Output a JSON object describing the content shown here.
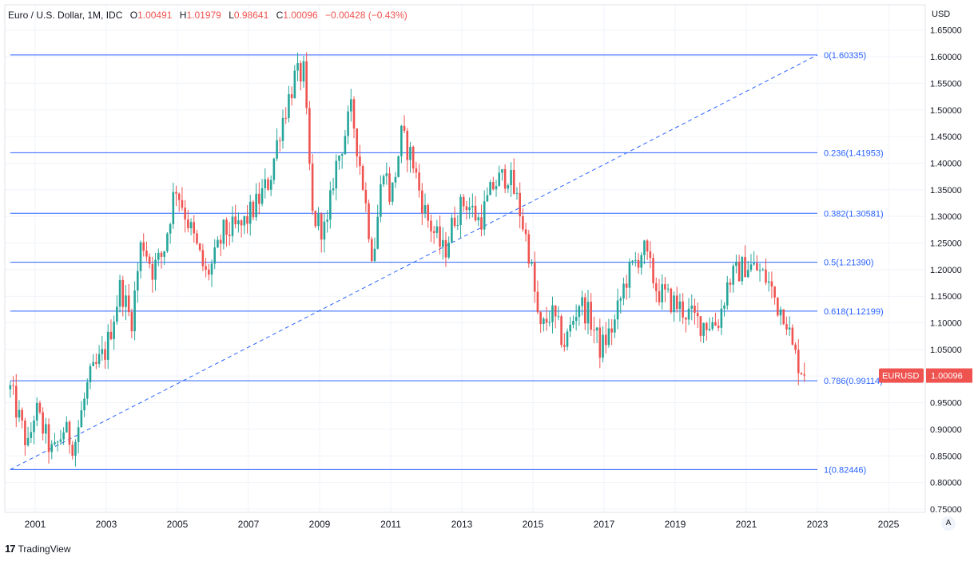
{
  "legend": {
    "symbol": "Euro / U.S. Dollar, 1M, IDC",
    "o_label": "O",
    "o_value": "1.00491",
    "h_label": "H",
    "h_value": "1.01979",
    "l_label": "L",
    "l_value": "0.98641",
    "c_label": "C",
    "c_value": "1.00096",
    "change": "−0.00428 (−0.43%)"
  },
  "axis_unit": "USD",
  "auto_label": "A",
  "brand": {
    "mark": "17",
    "name": "TradingView"
  },
  "price_badge": {
    "symbol": "EURUSD",
    "value": "1.00096"
  },
  "colors": {
    "up": "#26a69a",
    "down": "#ef5350",
    "fib": "#2962ff",
    "grid": "#f0f3fa",
    "badge": "#ef5350"
  },
  "chart_data": {
    "type": "candlestick",
    "interval": "1M",
    "x_range": [
      2000.2,
      2026.0
    ],
    "ylim": [
      0.75,
      1.65
    ],
    "y_ticks": [
      "0.75000",
      "0.80000",
      "0.85000",
      "0.90000",
      "0.95000",
      "1.00000",
      "1.05000",
      "1.10000",
      "1.15000",
      "1.20000",
      "1.25000",
      "1.30000",
      "1.35000",
      "1.40000",
      "1.45000",
      "1.50000",
      "1.55000",
      "1.60000",
      "1.65000"
    ],
    "x_ticks": [
      "2001",
      "2003",
      "2005",
      "2007",
      "2009",
      "2011",
      "2013",
      "2015",
      "2017",
      "2019",
      "2021",
      "2023",
      "2025"
    ],
    "grid": true,
    "price_anchors": [
      [
        2000.3,
        0.975
      ],
      [
        2000.8,
        0.865
      ],
      [
        2001.0,
        0.94
      ],
      [
        2001.5,
        0.85
      ],
      [
        2001.8,
        0.9
      ],
      [
        2002.1,
        0.87
      ],
      [
        2002.5,
        0.99
      ],
      [
        2003.0,
        1.05
      ],
      [
        2003.4,
        1.17
      ],
      [
        2003.7,
        1.1
      ],
      [
        2004.0,
        1.26
      ],
      [
        2004.3,
        1.2
      ],
      [
        2004.6,
        1.23
      ],
      [
        2004.95,
        1.36
      ],
      [
        2005.3,
        1.29
      ],
      [
        2005.8,
        1.19
      ],
      [
        2006.0,
        1.21
      ],
      [
        2006.3,
        1.27
      ],
      [
        2006.8,
        1.28
      ],
      [
        2007.2,
        1.32
      ],
      [
        2007.6,
        1.37
      ],
      [
        2007.9,
        1.47
      ],
      [
        2008.3,
        1.56
      ],
      [
        2008.55,
        1.57
      ],
      [
        2008.8,
        1.3
      ],
      [
        2009.2,
        1.27
      ],
      [
        2009.4,
        1.38
      ],
      [
        2009.9,
        1.5
      ],
      [
        2010.2,
        1.37
      ],
      [
        2010.5,
        1.22
      ],
      [
        2010.8,
        1.4
      ],
      [
        2011.0,
        1.33
      ],
      [
        2011.3,
        1.45
      ],
      [
        2011.6,
        1.41
      ],
      [
        2011.8,
        1.35
      ],
      [
        2012.0,
        1.3
      ],
      [
        2012.5,
        1.23
      ],
      [
        2012.8,
        1.3
      ],
      [
        2013.1,
        1.33
      ],
      [
        2013.5,
        1.29
      ],
      [
        2013.9,
        1.36
      ],
      [
        2014.3,
        1.38
      ],
      [
        2014.6,
        1.32
      ],
      [
        2014.9,
        1.23
      ],
      [
        2015.2,
        1.08
      ],
      [
        2015.5,
        1.12
      ],
      [
        2015.9,
        1.06
      ],
      [
        2016.3,
        1.14
      ],
      [
        2016.6,
        1.11
      ],
      [
        2016.9,
        1.05
      ],
      [
        2017.3,
        1.1
      ],
      [
        2017.6,
        1.18
      ],
      [
        2018.1,
        1.24
      ],
      [
        2018.5,
        1.16
      ],
      [
        2018.9,
        1.14
      ],
      [
        2019.3,
        1.12
      ],
      [
        2019.7,
        1.1
      ],
      [
        2020.2,
        1.1
      ],
      [
        2020.5,
        1.18
      ],
      [
        2021.0,
        1.21
      ],
      [
        2021.3,
        1.2
      ],
      [
        2021.6,
        1.18
      ],
      [
        2021.9,
        1.13
      ],
      [
        2022.1,
        1.12
      ],
      [
        2022.3,
        1.05
      ],
      [
        2022.5,
        1.02
      ],
      [
        2022.67,
        1.001
      ]
    ],
    "fib_levels": [
      {
        "ratio": "0",
        "price": 1.60335,
        "label": "0(1.60335)"
      },
      {
        "ratio": "0.236",
        "price": 1.41953,
        "label": "0.236(1.41953)"
      },
      {
        "ratio": "0.382",
        "price": 1.30581,
        "label": "0.382(1.30581)"
      },
      {
        "ratio": "0.5",
        "price": 1.2139,
        "label": "0.5(1.21390)"
      },
      {
        "ratio": "0.618",
        "price": 1.12199,
        "label": "0.618(1.12199)"
      },
      {
        "ratio": "0.786",
        "price": 0.99114,
        "label": "0.786(0.99114)"
      },
      {
        "ratio": "1",
        "price": 0.82446,
        "label": "1(0.82446)"
      }
    ],
    "fib_trend": {
      "from": [
        2000.3,
        0.82446
      ],
      "to": [
        2023.0,
        1.60335
      ]
    },
    "last_price": 1.00096
  }
}
